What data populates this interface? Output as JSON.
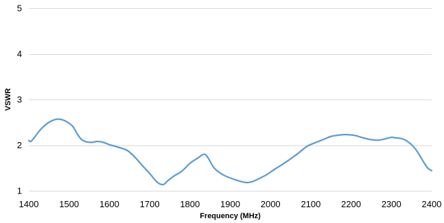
{
  "chart_data": {
    "type": "line",
    "xlabel": "Frequency (MHz)",
    "ylabel": "VSWR",
    "xlim": [
      1400,
      2400
    ],
    "ylim": [
      1,
      5
    ],
    "x_ticks": [
      "1400",
      "1500",
      "1600",
      "1700",
      "1800",
      "1900",
      "2000",
      "2100",
      "2200",
      "2300",
      "2400"
    ],
    "y_ticks": [
      "1",
      "2",
      "3",
      "4",
      "5"
    ],
    "grid": "horizontal",
    "series_color": "#5b9bd5",
    "series": [
      {
        "x": [
          1400,
          1405,
          1415,
          1430,
          1450,
          1470,
          1485,
          1500,
          1510,
          1520,
          1530,
          1540,
          1555,
          1570,
          1585,
          1600,
          1620,
          1645,
          1665,
          1685,
          1700,
          1715,
          1725,
          1735,
          1745,
          1760,
          1780,
          1800,
          1820,
          1835,
          1845,
          1860,
          1880,
          1900,
          1920,
          1940,
          1955,
          1970,
          1990,
          2010,
          2030,
          2050,
          2070,
          2090,
          2110,
          2130,
          2150,
          2170,
          2190,
          2210,
          2230,
          2250,
          2270,
          2290,
          2300,
          2310,
          2330,
          2350,
          2365,
          2380,
          2390,
          2400
        ],
        "y": [
          2.1,
          2.08,
          2.18,
          2.35,
          2.5,
          2.57,
          2.55,
          2.48,
          2.4,
          2.25,
          2.13,
          2.08,
          2.06,
          2.08,
          2.06,
          2.01,
          1.96,
          1.88,
          1.72,
          1.52,
          1.38,
          1.22,
          1.15,
          1.14,
          1.22,
          1.32,
          1.43,
          1.6,
          1.72,
          1.8,
          1.72,
          1.5,
          1.36,
          1.28,
          1.22,
          1.18,
          1.2,
          1.26,
          1.35,
          1.47,
          1.58,
          1.7,
          1.83,
          1.97,
          2.05,
          2.12,
          2.19,
          2.22,
          2.23,
          2.21,
          2.16,
          2.12,
          2.11,
          2.15,
          2.17,
          2.16,
          2.13,
          2.01,
          1.85,
          1.63,
          1.5,
          1.44
        ]
      }
    ]
  }
}
